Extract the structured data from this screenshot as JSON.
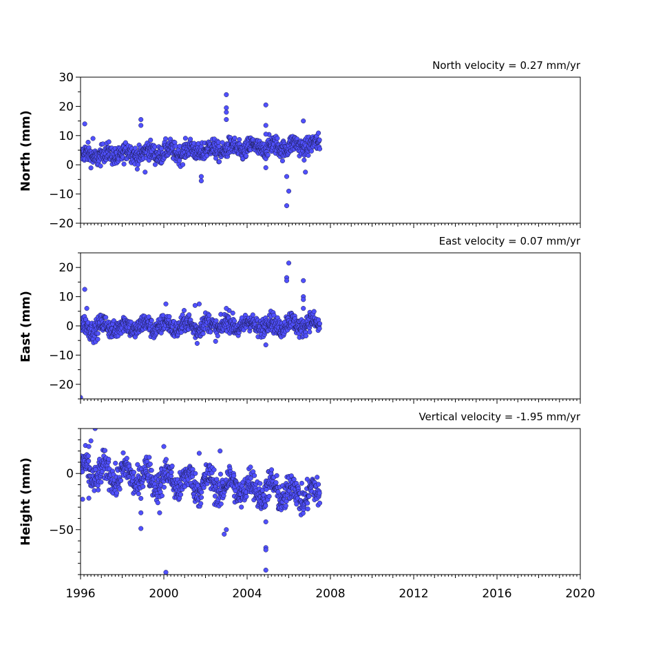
{
  "chart_data": [
    {
      "type": "scatter",
      "title": "North velocity = 0.27 mm/yr",
      "ylabel": "North (mm)",
      "xlim": [
        1996,
        2020
      ],
      "ylim": [
        -20,
        30
      ],
      "yticks": [
        30,
        20,
        10,
        0,
        -10,
        -20
      ],
      "ytick_labels": [
        "30",
        "20",
        "10",
        "0",
        "−10",
        "−20"
      ],
      "xtick_labels": [],
      "marker_color": "#5050ff",
      "series": [
        {
          "values_summary": "daily positions 1996.0-2007.5, mean rising from about 3 mm to about 7 mm, scatter about +/-3 mm",
          "x": [
            1996.2,
            1996.6,
            1998.9,
            1998.9,
            2003.0,
            2003.0,
            2003.0,
            2003.0,
            2004.9,
            2004.9,
            2004.9,
            2005.9,
            2005.9,
            2006.0,
            2006.7,
            2006.8,
            1999.1,
            2001.8,
            2001.8,
            2004.9
          ],
          "y": [
            14.0,
            9.0,
            15.5,
            13.5,
            24.0,
            19.5,
            18.0,
            15.5,
            20.5,
            13.5,
            10.5,
            -14.0,
            -4.0,
            -9.0,
            15.0,
            -2.5,
            -2.5,
            -4.0,
            -5.5,
            -1.0
          ]
        }
      ]
    },
    {
      "type": "scatter",
      "title": "East velocity = 0.07 mm/yr",
      "ylabel": "East (mm)",
      "xlim": [
        1996,
        2020
      ],
      "ylim": [
        -25,
        25
      ],
      "yticks": [
        20,
        10,
        0,
        -10,
        -20
      ],
      "ytick_labels": [
        "20",
        "10",
        "0",
        "−10",
        "−20"
      ],
      "xtick_labels": [],
      "marker_color": "#5050ff",
      "series": [
        {
          "values_summary": "daily positions 1996.0-2007.5, mean near 0 mm, scatter about +/-3 mm",
          "x": [
            1996.0,
            1996.2,
            1996.3,
            2000.1,
            2001.5,
            2001.7,
            2001.6,
            2003.0,
            2004.9,
            2005.9,
            2005.9,
            2006.0,
            2006.7,
            2006.7,
            2006.7,
            2006.7
          ],
          "y": [
            -24.5,
            12.5,
            6.0,
            7.5,
            7.0,
            7.5,
            -6.0,
            6.0,
            -6.5,
            16.5,
            15.5,
            21.5,
            15.5,
            10.0,
            9.0,
            6.0
          ]
        }
      ]
    },
    {
      "type": "scatter",
      "title": "Vertical velocity = -1.95 mm/yr",
      "ylabel": "Height (mm)",
      "xlim": [
        1996,
        2020
      ],
      "ylim": [
        -90,
        40
      ],
      "yticks": [
        0,
        -50
      ],
      "ytick_labels": [
        "0",
        "−50"
      ],
      "xticks": [
        1996,
        2000,
        2004,
        2008,
        2012,
        2016,
        2020
      ],
      "xtick_labels": [
        "1996",
        "2000",
        "2004",
        "2008",
        "2012",
        "2016",
        "2020"
      ],
      "marker_color": "#5050ff",
      "series": [
        {
          "values_summary": "daily positions 1996.0-2007.5, mean decreasing from about 0 mm to about -20 mm, scatter about +/-12 mm",
          "x": [
            1996.7,
            1996.5,
            1996.4,
            2000.1,
            1999.8,
            2000.0,
            1998.9,
            1998.9,
            2002.9,
            2003.0,
            2004.9,
            2004.9,
            2004.9,
            2004.9,
            1996.1,
            1996.4,
            2002.7,
            2001.7
          ],
          "y": [
            40.0,
            29.0,
            24.0,
            -88.0,
            -35.0,
            24.0,
            -35.0,
            -49.0,
            -54.0,
            -50.0,
            -66.0,
            -68.0,
            -86.0,
            -43.0,
            -23.0,
            -22.0,
            20.0,
            18.0
          ]
        }
      ]
    }
  ]
}
